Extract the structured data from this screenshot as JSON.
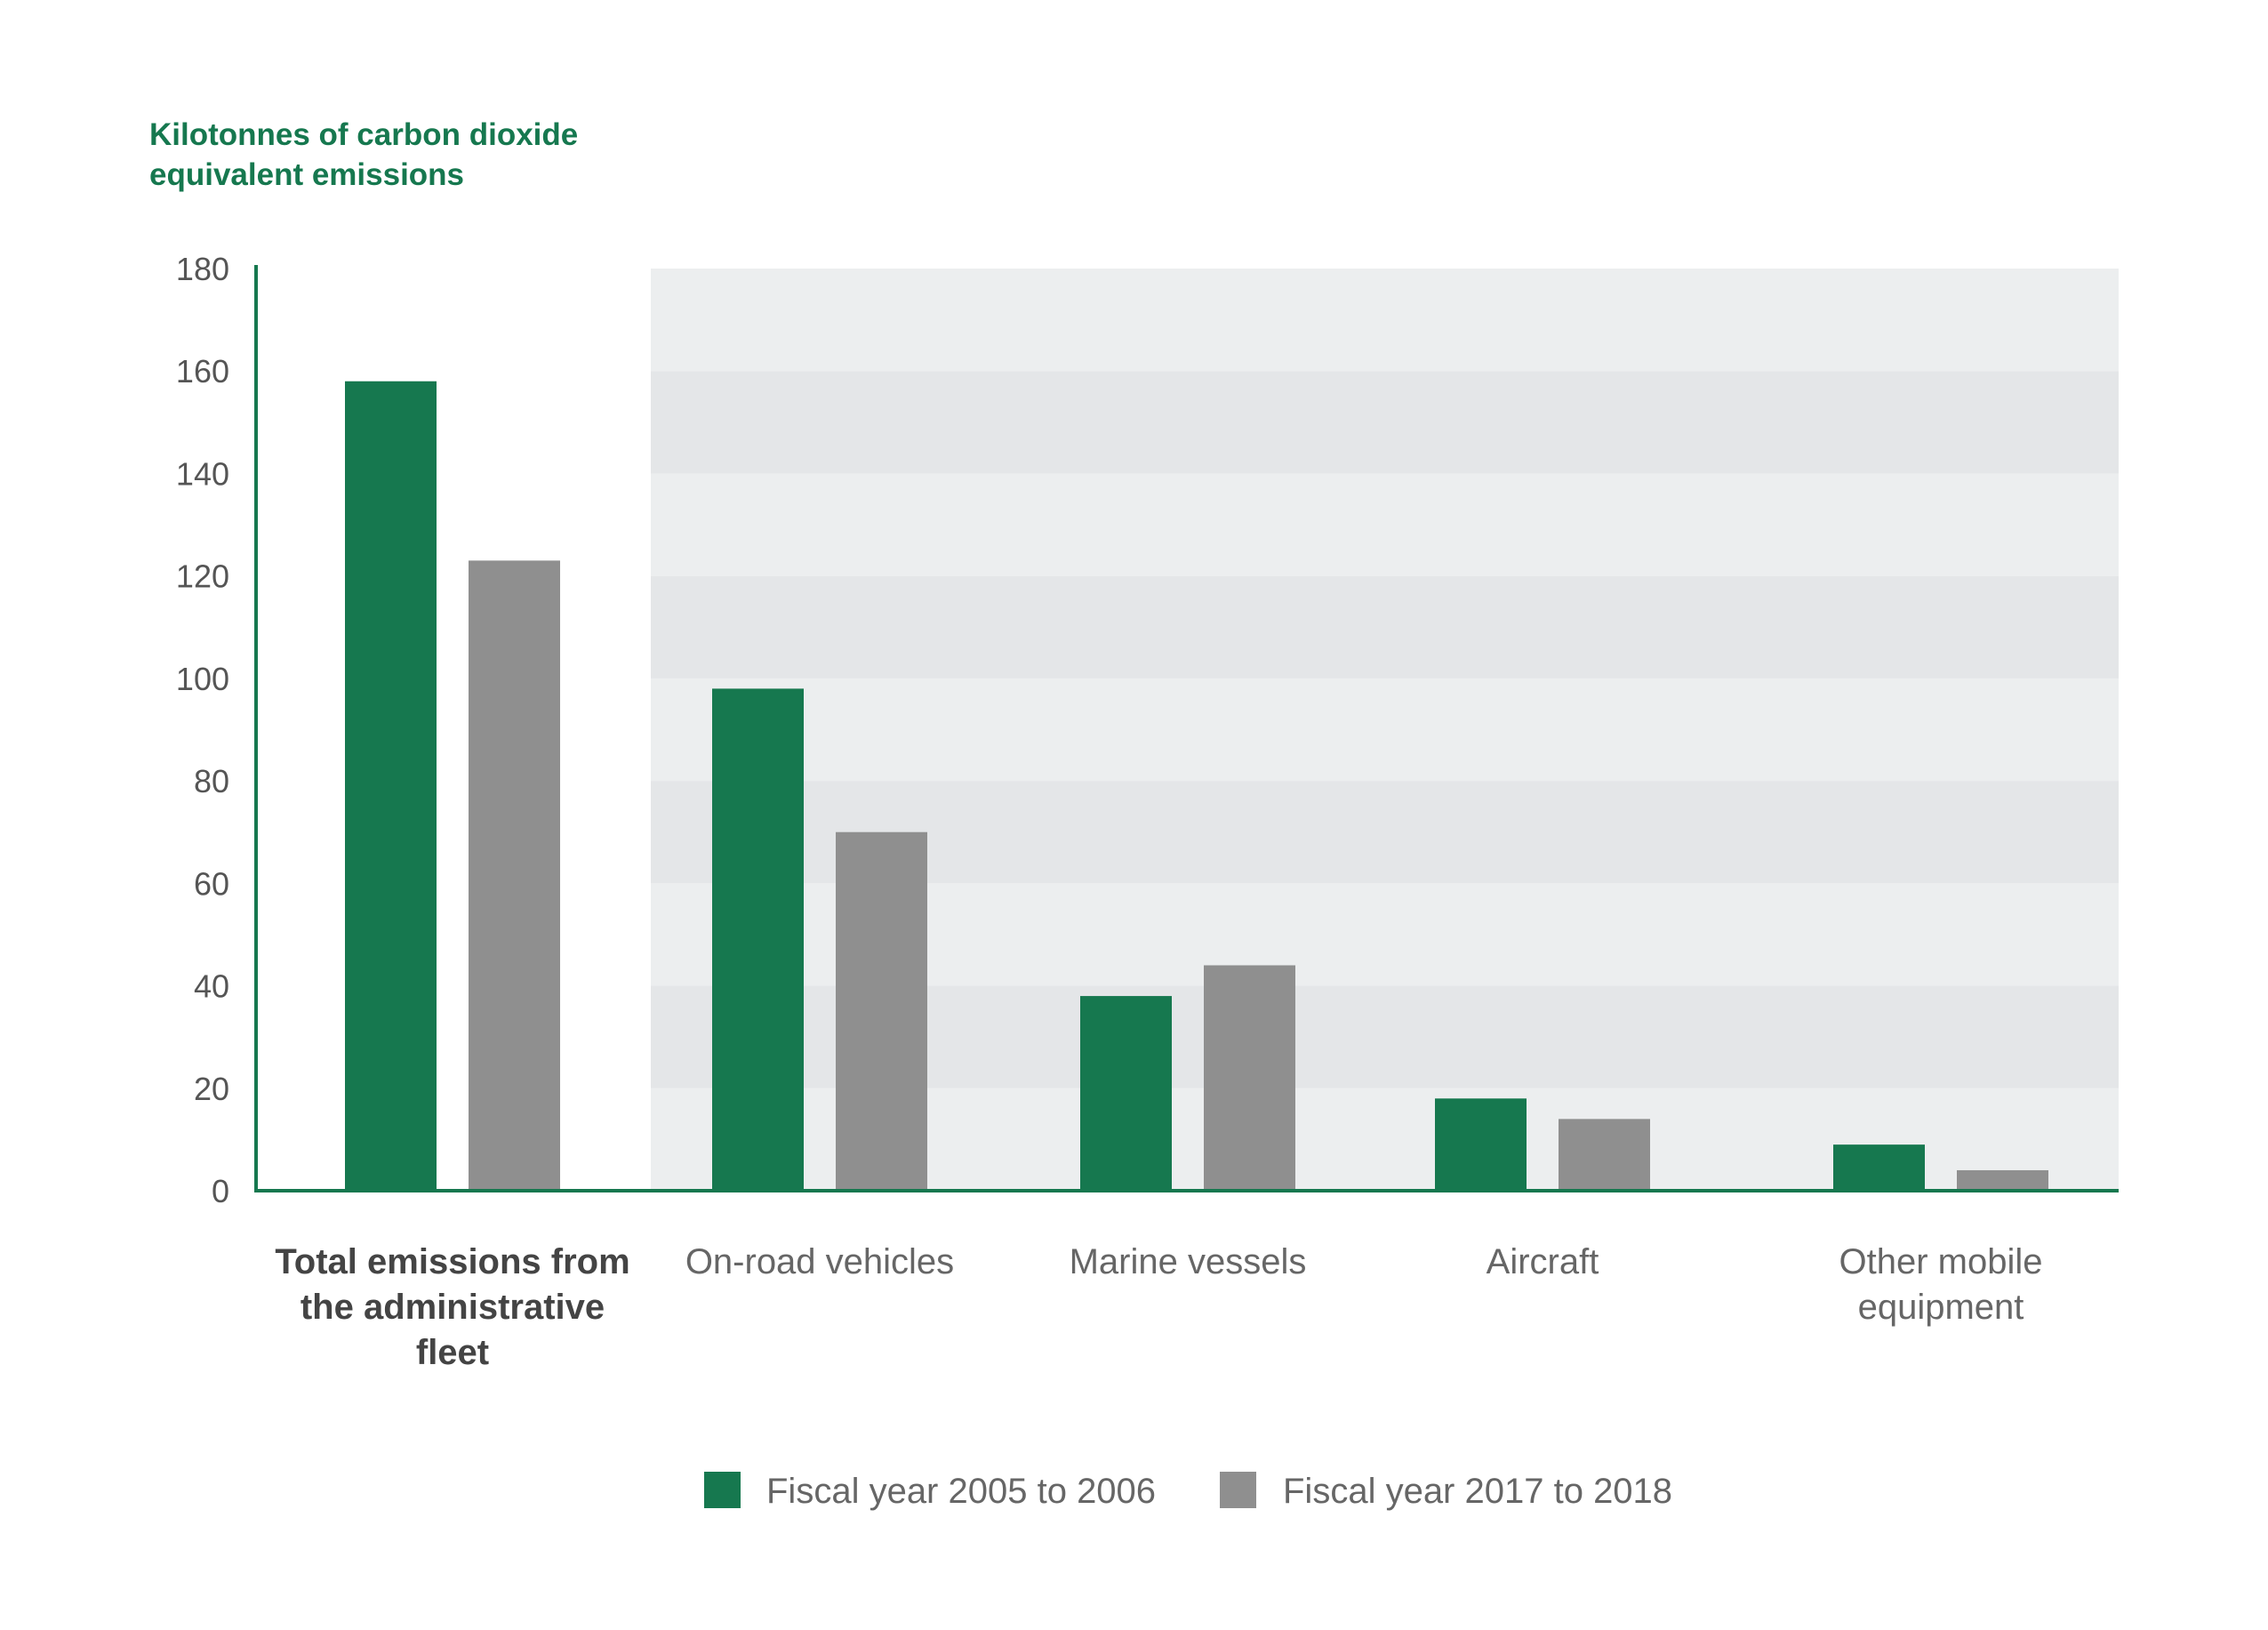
{
  "chart_data": {
    "type": "bar",
    "title": "",
    "ylabel": "Kilotonnes of carbon dioxide equivalent emissions",
    "ylabel_lines": [
      "Kilotonnes of carbon dioxide",
      "equivalent emissions"
    ],
    "xlabel": "",
    "ylim": [
      0,
      180
    ],
    "yticks": [
      0,
      20,
      40,
      60,
      80,
      100,
      120,
      140,
      160,
      180
    ],
    "grid": false,
    "legend_position": "bottom",
    "categories": [
      "Total emissions from the administrative fleet",
      "On-road vehicles",
      "Marine vessels",
      "Aircraft",
      "Other mobile equipment"
    ],
    "category_label_lines": [
      [
        "Total emissions from",
        "the administrative",
        "fleet"
      ],
      [
        "On-road vehicles"
      ],
      [
        "Marine vessels"
      ],
      [
        "Aircraft"
      ],
      [
        "Other mobile",
        "equipment"
      ]
    ],
    "series": [
      {
        "name": "Fiscal year 2005 to 2006",
        "color": "#16784f",
        "values": [
          158,
          98,
          38,
          18,
          9
        ]
      },
      {
        "name": "Fiscal year 2017 to 2018",
        "color": "#8f8f8f",
        "values": [
          123,
          70,
          44,
          14,
          4
        ]
      }
    ],
    "colors": {
      "axis": "#16784f",
      "band_light": "#eceeef",
      "band_dark": "#e4e6e8"
    }
  }
}
